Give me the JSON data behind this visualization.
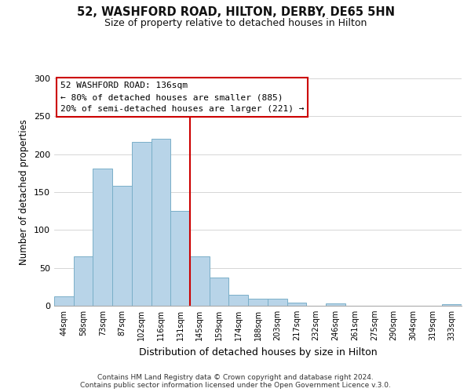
{
  "title": "52, WASHFORD ROAD, HILTON, DERBY, DE65 5HN",
  "subtitle": "Size of property relative to detached houses in Hilton",
  "xlabel": "Distribution of detached houses by size in Hilton",
  "ylabel": "Number of detached properties",
  "bar_labels": [
    "44sqm",
    "58sqm",
    "73sqm",
    "87sqm",
    "102sqm",
    "116sqm",
    "131sqm",
    "145sqm",
    "159sqm",
    "174sqm",
    "188sqm",
    "203sqm",
    "217sqm",
    "232sqm",
    "246sqm",
    "261sqm",
    "275sqm",
    "290sqm",
    "304sqm",
    "319sqm",
    "333sqm"
  ],
  "bar_values": [
    12,
    65,
    181,
    158,
    216,
    220,
    125,
    65,
    37,
    14,
    9,
    9,
    4,
    0,
    3,
    0,
    0,
    0,
    0,
    0,
    2
  ],
  "bar_color": "#b8d4e8",
  "bar_edge_color": "#7aafc8",
  "vline_x": 6.5,
  "vline_color": "#cc0000",
  "annotation_title": "52 WASHFORD ROAD: 136sqm",
  "annotation_line1": "← 80% of detached houses are smaller (885)",
  "annotation_line2": "20% of semi-detached houses are larger (221) →",
  "annotation_box_color": "#ffffff",
  "annotation_box_edge": "#cc0000",
  "ylim": [
    0,
    300
  ],
  "yticks": [
    0,
    50,
    100,
    150,
    200,
    250,
    300
  ],
  "footer1": "Contains HM Land Registry data © Crown copyright and database right 2024.",
  "footer2": "Contains public sector information licensed under the Open Government Licence v.3.0."
}
